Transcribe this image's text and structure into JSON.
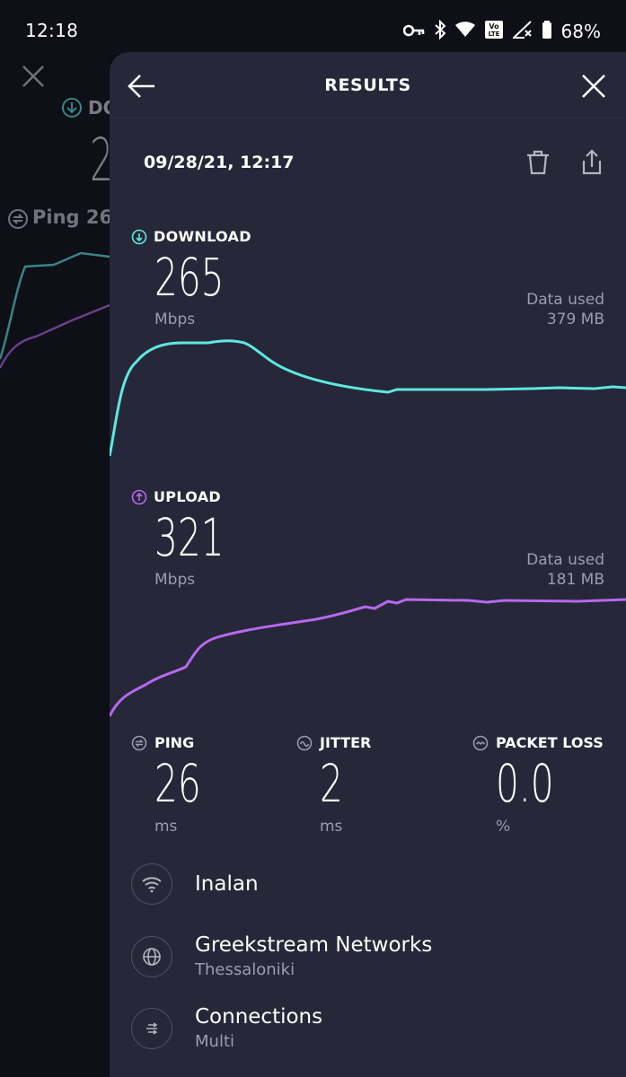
{
  "status_bar": {
    "time": "12:18",
    "battery": "68%",
    "icons": [
      "vpn-key-icon",
      "bluetooth-icon",
      "wifi-icon",
      "volte-icon",
      "signal-off-icon",
      "battery-icon"
    ]
  },
  "background_screen": {
    "download_label": "DO",
    "download_value": "2",
    "ping_label": "Ping 26"
  },
  "header": {
    "title": "RESULTS"
  },
  "result": {
    "date": "09/28/21, 12:17"
  },
  "download": {
    "label": "DOWNLOAD",
    "value": "265",
    "unit": "Mbps",
    "data_used_label": "Data used",
    "data_used_value": "379 MB",
    "color": "#5ee8e0"
  },
  "upload": {
    "label": "UPLOAD",
    "value": "321",
    "unit": "Mbps",
    "data_used_label": "Data used",
    "data_used_value": "181 MB",
    "color": "#b768f0"
  },
  "stats": {
    "ping": {
      "label": "PING",
      "value": "26",
      "unit": "ms"
    },
    "jitter": {
      "label": "JITTER",
      "value": "2",
      "unit": "ms"
    },
    "packet_loss": {
      "label": "PACKET LOSS",
      "value": "0.0",
      "unit": "%"
    }
  },
  "info": {
    "wifi": {
      "name": "Inalan"
    },
    "server": {
      "name": "Greekstream Networks",
      "location": "Thessaloniki"
    },
    "connections": {
      "label": "Connections",
      "value": "Multi"
    }
  }
}
